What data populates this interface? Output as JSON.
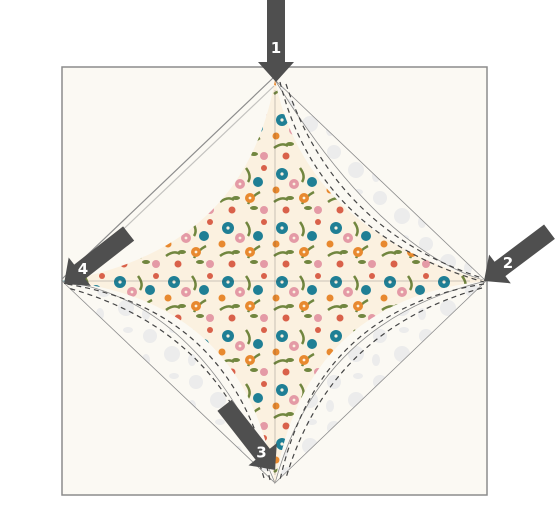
{
  "diagram": {
    "colors": {
      "background": "#fbf9f3",
      "border": "#8c8c8c",
      "arrow": "#4f4f4f",
      "arrow_text": "#ffffff",
      "print_light": "#ececec",
      "fabric_base": "#fbf1e0",
      "fabric_teal": "#1f7f95",
      "fabric_orange": "#e8892f",
      "fabric_pink": "#e49aa6",
      "fabric_green": "#71863f",
      "fabric_coral": "#d9614a",
      "stitch": "#444444"
    },
    "markers": [
      {
        "id": "1",
        "label": "1"
      },
      {
        "id": "2",
        "label": "2"
      },
      {
        "id": "3",
        "label": "3"
      },
      {
        "id": "4",
        "label": "4"
      }
    ]
  }
}
